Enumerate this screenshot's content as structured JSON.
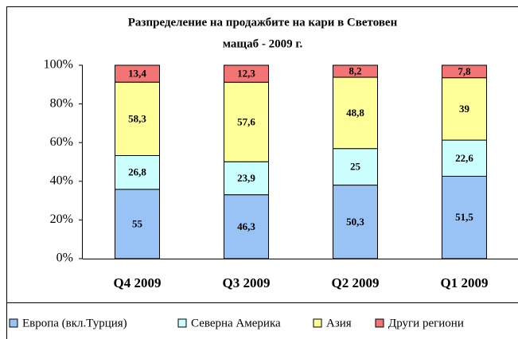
{
  "chart_data": {
    "type": "bar",
    "stacking": "percent",
    "title": [
      "Разпределение на продажбите на кари в Световен",
      "мащаб - 2009 г."
    ],
    "categories": [
      "Q4 2009",
      "Q3 2009",
      "Q2 2009",
      "Q1 2009"
    ],
    "series": [
      {
        "name": "Европа (вкл.Турция)",
        "color": "#99c2f5",
        "values": [
          55,
          46.3,
          50.3,
          51.5
        ],
        "value_labels": [
          "55",
          "46,3",
          "50,3",
          "51,5"
        ]
      },
      {
        "name": "Северна Америка",
        "color": "#ccffff",
        "values": [
          26.8,
          23.9,
          25,
          22.6
        ],
        "value_labels": [
          "26,8",
          "23,9",
          "25",
          "22,6"
        ]
      },
      {
        "name": "Азия",
        "color": "#ffff99",
        "values": [
          58.3,
          57.6,
          48.8,
          39
        ],
        "value_labels": [
          "58,3",
          "57,6",
          "48,8",
          "39"
        ]
      },
      {
        "name": "Други региони",
        "color": "#f27474",
        "values": [
          13.4,
          12.3,
          8.2,
          7.8
        ],
        "value_labels": [
          "13,4",
          "12,3",
          "8,2",
          "7,8"
        ]
      }
    ],
    "ylim": [
      0,
      100
    ],
    "yticks": [
      {
        "value": 0,
        "label": "0%"
      },
      {
        "value": 20,
        "label": "20%"
      },
      {
        "value": 40,
        "label": "40%"
      },
      {
        "value": 60,
        "label": "60%"
      },
      {
        "value": 80,
        "label": "80%"
      },
      {
        "value": 100,
        "label": "100%"
      }
    ],
    "legend": "bottom"
  }
}
